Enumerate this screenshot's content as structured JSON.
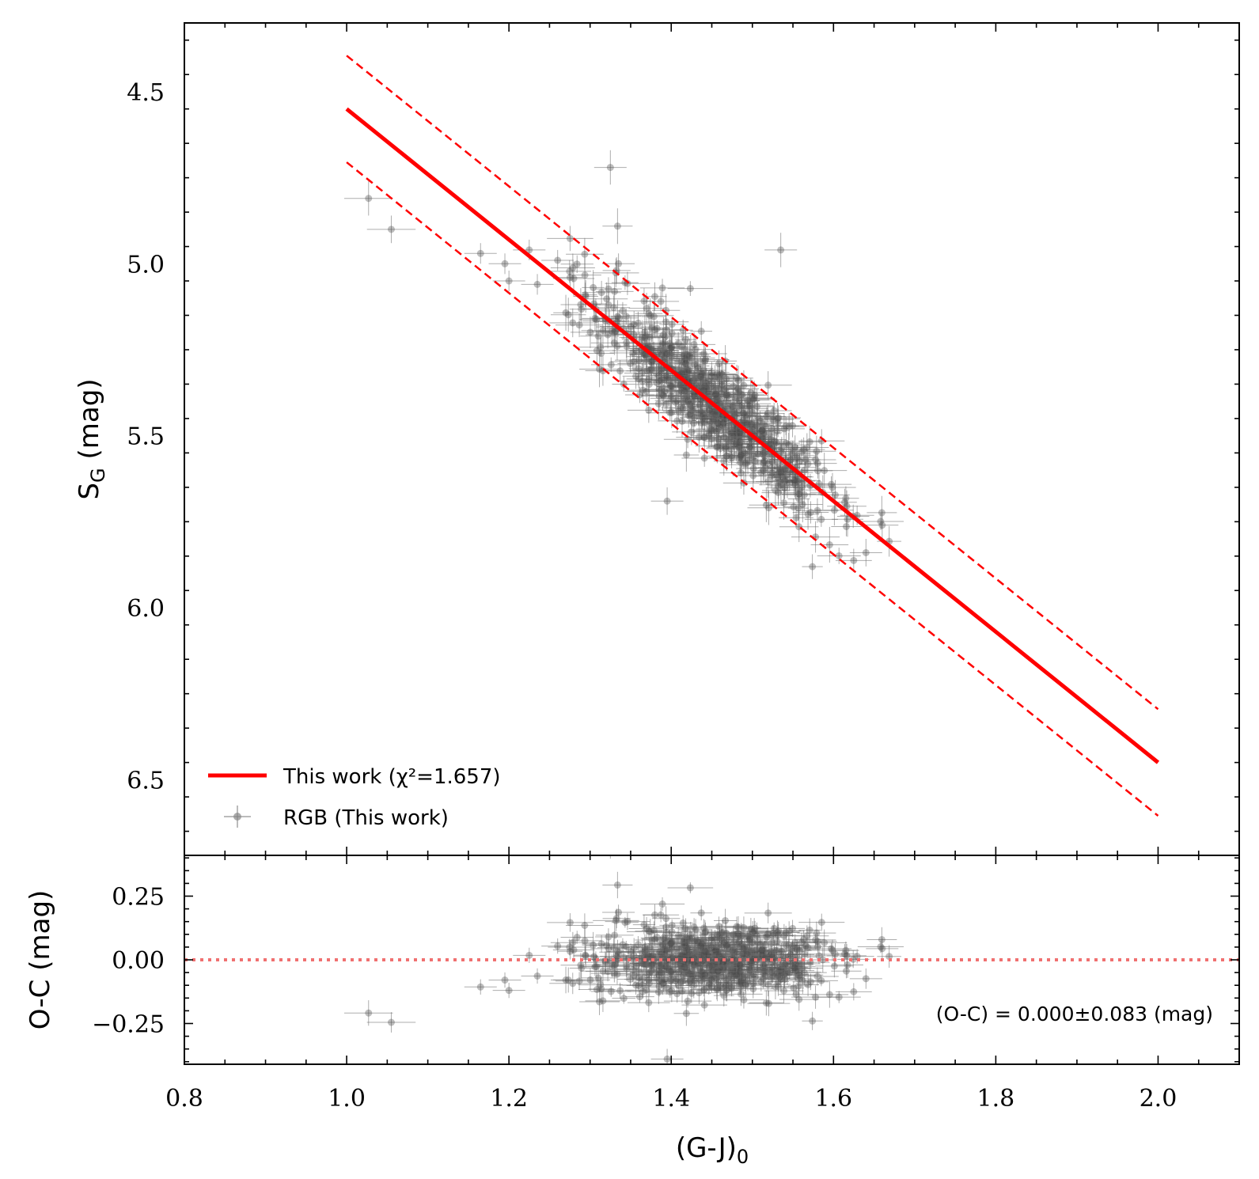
{
  "chart_data": [
    {
      "panel": "main",
      "type": "scatter",
      "xlabel_main": "(G-J)",
      "xlabel_sub": "0",
      "ylabel_main": "S",
      "ylabel_sub": "G",
      "ylabel_rest": " (mag)",
      "xlim": [
        0.8,
        2.1
      ],
      "ylim": [
        6.72,
        4.3
      ],
      "y_inverted": true,
      "xticks": [
        0.8,
        1.0,
        1.2,
        1.4,
        1.6,
        1.8,
        2.0
      ],
      "xtick_labels": [
        "0.8",
        "1.0",
        "1.2",
        "1.4",
        "1.6",
        "1.8",
        "2.0"
      ],
      "yticks": [
        4.5,
        5.0,
        5.5,
        6.0,
        6.5
      ],
      "ytick_labels": [
        "4.5",
        "5.0",
        "5.5",
        "6.0",
        "6.5"
      ],
      "fit_line": {
        "name": "This work",
        "chi2_label": "χ²=1.657",
        "slope": 1.9,
        "intercept": 2.65,
        "x_range": [
          1.0,
          2.0
        ],
        "offset_dashed": 0.155,
        "color": "#ff0000"
      },
      "legend": [
        {
          "label": "This work (χ²=1.657)",
          "style": "solid-red-line"
        },
        {
          "label": "RGB (This work)",
          "style": "gray-marker-errorbar"
        }
      ],
      "legend_position": "lower-left",
      "outliers": [
        {
          "x": 1.027,
          "y": 4.81,
          "xerr": 0.03,
          "yerr": 0.05
        },
        {
          "x": 1.055,
          "y": 4.9,
          "xerr": 0.03,
          "yerr": 0.04
        },
        {
          "x": 1.325,
          "y": 4.72,
          "xerr": 0.02,
          "yerr": 0.05
        },
        {
          "x": 1.535,
          "y": 4.96,
          "xerr": 0.02,
          "yerr": 0.05
        },
        {
          "x": 1.395,
          "y": 5.69,
          "xerr": 0.02,
          "yerr": 0.04
        },
        {
          "x": 1.165,
          "y": 4.97,
          "xerr": 0.02,
          "yerr": 0.03
        },
        {
          "x": 1.195,
          "y": 5.0,
          "xerr": 0.02,
          "yerr": 0.03
        },
        {
          "x": 1.225,
          "y": 4.96,
          "xerr": 0.02,
          "yerr": 0.03
        },
        {
          "x": 1.26,
          "y": 4.99,
          "xerr": 0.02,
          "yerr": 0.03
        },
        {
          "x": 1.335,
          "y": 5.0,
          "xerr": 0.02,
          "yerr": 0.03
        },
        {
          "x": 1.2,
          "y": 5.05,
          "xerr": 0.02,
          "yerr": 0.03
        },
        {
          "x": 1.235,
          "y": 5.06,
          "xerr": 0.02,
          "yerr": 0.03
        },
        {
          "x": 1.64,
          "y": 5.84,
          "xerr": 0.02,
          "yerr": 0.04
        },
        {
          "x": 1.66,
          "y": 5.76,
          "xerr": 0.02,
          "yerr": 0.04
        }
      ],
      "cloud": {
        "n_points": 700,
        "x_center": 1.45,
        "x_sd": 0.075,
        "x_min": 1.27,
        "x_max": 1.67,
        "residual_sd": 0.07,
        "xerr": 0.02,
        "yerr": 0.035
      }
    },
    {
      "panel": "residual",
      "type": "scatter",
      "ylabel": "O-C (mag)",
      "xlim": [
        0.8,
        2.1
      ],
      "ylim": [
        -0.41,
        0.41
      ],
      "yticks": [
        0.25,
        0.0,
        -0.25
      ],
      "ytick_labels": [
        "0.25",
        "0.00",
        "−0.25"
      ],
      "zero_line": {
        "y": 0.0,
        "style": "dotted",
        "color": "#f07070"
      },
      "annotation": "(O-C) = 0.000±0.083 (mag)",
      "mean": 0.0,
      "sd": 0.083
    }
  ],
  "colors": {
    "fit": "#ff0000",
    "points": "#555555",
    "zero_line": "#f07070"
  }
}
